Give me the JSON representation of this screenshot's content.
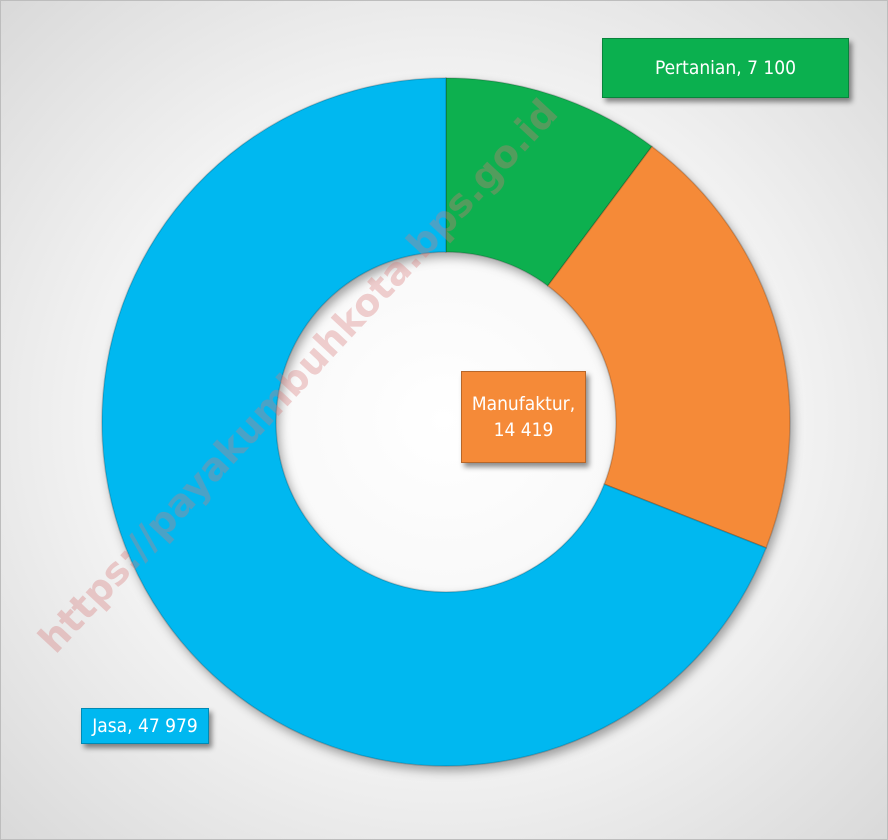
{
  "chart_data": {
    "type": "donut",
    "categories": [
      "Pertanian",
      "Manufaktur",
      "Jasa"
    ],
    "values": [
      7100,
      14419,
      47979
    ],
    "value_labels": [
      "Pertanian, 7 100",
      "Manufaktur, 14 419",
      "Jasa, 47 979"
    ],
    "colors": [
      "#0bb04f",
      "#f58a38",
      "#00b8f0"
    ],
    "watermark": "https://payakumbuhkota.bps.go.id"
  }
}
